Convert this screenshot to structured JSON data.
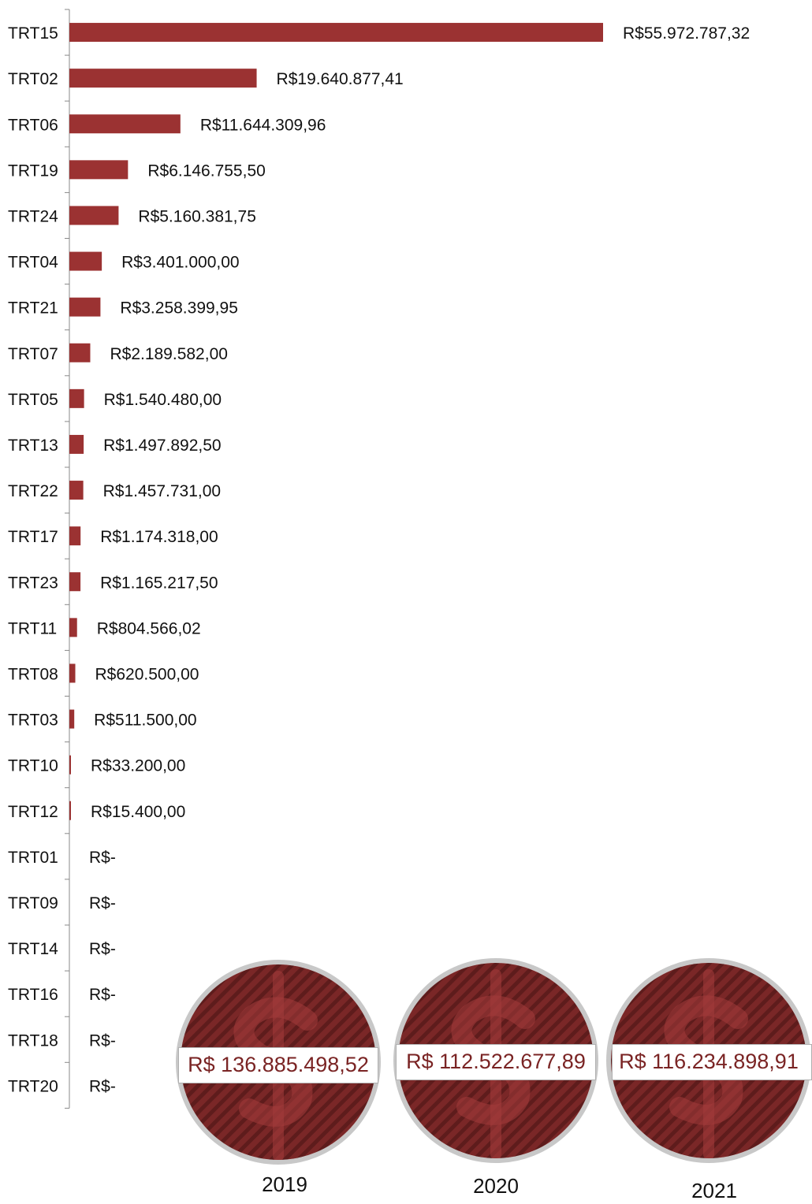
{
  "chart_data": {
    "type": "bar",
    "orientation": "horizontal",
    "categories": [
      "TRT15",
      "TRT02",
      "TRT06",
      "TRT19",
      "TRT24",
      "TRT04",
      "TRT21",
      "TRT07",
      "TRT05",
      "TRT13",
      "TRT22",
      "TRT17",
      "TRT23",
      "TRT11",
      "TRT08",
      "TRT03",
      "TRT10",
      "TRT12",
      "TRT01",
      "TRT09",
      "TRT14",
      "TRT16",
      "TRT18",
      "TRT20"
    ],
    "values": [
      55972787.32,
      19640877.41,
      11644309.96,
      6146755.5,
      5160381.75,
      3401000.0,
      3258399.95,
      2189582.0,
      1540480.0,
      1497892.5,
      1457731.0,
      1174318.0,
      1165217.5,
      804566.02,
      620500.0,
      511500.0,
      33200.0,
      15400.0,
      0,
      0,
      0,
      0,
      0,
      0
    ],
    "data_labels": [
      "R$55.972.787,32",
      "R$19.640.877,41",
      "R$11.644.309,96",
      "R$6.146.755,50",
      "R$5.160.381,75",
      "R$3.401.000,00",
      "R$3.258.399,95",
      "R$2.189.582,00",
      "R$1.540.480,00",
      "R$1.497.892,50",
      "R$1.457.731,00",
      "R$1.174.318,00",
      "R$1.165.217,50",
      "R$804.566,02",
      "R$620.500,00",
      "R$511.500,00",
      "R$33.200,00",
      "R$15.400,00",
      "R$-",
      "R$-",
      "R$-",
      "R$-",
      "R$-",
      "R$-"
    ],
    "bar_color": "#9b3232",
    "grid": false
  },
  "totals": [
    {
      "amount": "R$ 136.885.498,52",
      "year": "2019"
    },
    {
      "amount": "R$ 112.522.677,89",
      "year": "2020"
    },
    {
      "amount": "R$ 116.234.898,91",
      "year": "2021"
    }
  ],
  "badge_icon": "dollar-sign-icon",
  "colors": {
    "badge_fill": "#7a2727",
    "badge_stripe": "#5e1c1c",
    "badge_ring": "#c8c8c8",
    "badge_text": "#7a2424"
  }
}
